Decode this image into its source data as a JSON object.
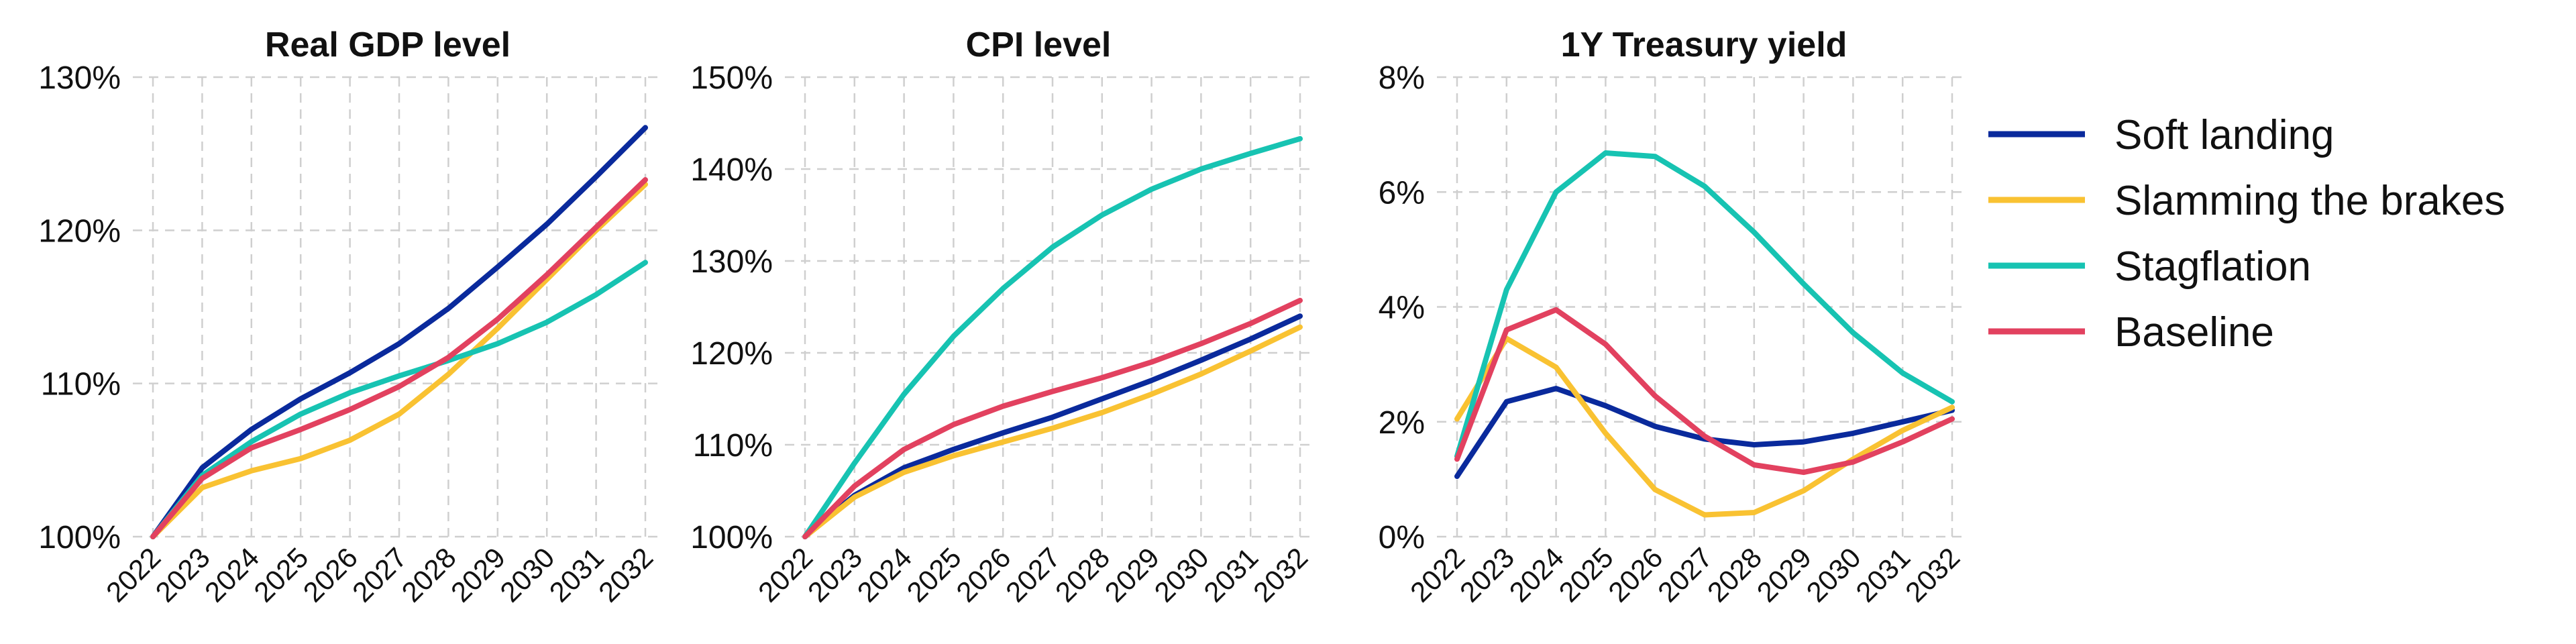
{
  "colors": {
    "soft_landing": "#0a2a9c",
    "slamming": "#f9c232",
    "stagflation": "#17c3b2",
    "baseline": "#e2415f"
  },
  "legend": [
    {
      "label": "Soft landing",
      "color": "#0a2a9c"
    },
    {
      "label": "Slamming the brakes",
      "color": "#f9c232"
    },
    {
      "label": "Stagflation",
      "color": "#17c3b2"
    },
    {
      "label": "Baseline",
      "color": "#e2415f"
    }
  ],
  "chart_data": [
    {
      "type": "line",
      "title": "Real GDP level",
      "x": [
        "2022",
        "2023",
        "2024",
        "2025",
        "2026",
        "2027",
        "2028",
        "2029",
        "2030",
        "2031",
        "2032"
      ],
      "ylim": [
        100,
        130
      ],
      "yticks": [
        100,
        110,
        120,
        130
      ],
      "ytick_labels": [
        "100%",
        "110%",
        "120%",
        "130%"
      ],
      "grid": true,
      "series": [
        {
          "name": "Soft landing",
          "color": "#0a2a9c",
          "values": [
            100,
            104.5,
            107.0,
            109.0,
            110.7,
            112.6,
            114.9,
            117.6,
            120.4,
            123.5,
            126.7
          ]
        },
        {
          "name": "Slamming the brakes",
          "color": "#f9c232",
          "values": [
            100,
            103.2,
            104.3,
            105.1,
            106.3,
            108.0,
            110.6,
            113.6,
            116.8,
            120.0,
            123.0
          ]
        },
        {
          "name": "Stagflation",
          "color": "#17c3b2",
          "values": [
            100,
            104.0,
            106.2,
            108.0,
            109.4,
            110.5,
            111.5,
            112.6,
            114.0,
            115.8,
            117.9
          ]
        },
        {
          "name": "Baseline",
          "color": "#e2415f",
          "values": [
            100,
            103.8,
            105.8,
            107.0,
            108.3,
            109.8,
            111.7,
            114.2,
            117.1,
            120.2,
            123.3
          ]
        }
      ]
    },
    {
      "type": "line",
      "title": "CPI level",
      "x": [
        "2022",
        "2023",
        "2024",
        "2025",
        "2026",
        "2027",
        "2028",
        "2029",
        "2030",
        "2031",
        "2032"
      ],
      "ylim": [
        100,
        150
      ],
      "yticks": [
        100,
        110,
        120,
        130,
        140,
        150
      ],
      "ytick_labels": [
        "100%",
        "110%",
        "120%",
        "130%",
        "140%",
        "150%"
      ],
      "grid": true,
      "series": [
        {
          "name": "Soft landing",
          "color": "#0a2a9c",
          "values": [
            100,
            104.5,
            107.5,
            109.5,
            111.3,
            113.0,
            115.0,
            117.0,
            119.2,
            121.5,
            124.0
          ]
        },
        {
          "name": "Slamming the brakes",
          "color": "#f9c232",
          "values": [
            100,
            104.3,
            107.0,
            108.8,
            110.3,
            111.8,
            113.5,
            115.5,
            117.7,
            120.2,
            122.8
          ]
        },
        {
          "name": "Stagflation",
          "color": "#17c3b2",
          "values": [
            100,
            108.0,
            115.5,
            121.8,
            127.0,
            131.5,
            135.0,
            137.8,
            140.0,
            141.7,
            143.3
          ]
        },
        {
          "name": "Baseline",
          "color": "#e2415f",
          "values": [
            100,
            105.5,
            109.5,
            112.2,
            114.2,
            115.8,
            117.3,
            119.0,
            121.0,
            123.2,
            125.7
          ]
        }
      ]
    },
    {
      "type": "line",
      "title": "1Y Treasury yield",
      "x": [
        "2022",
        "2023",
        "2024",
        "2025",
        "2026",
        "2027",
        "2028",
        "2029",
        "2030",
        "2031",
        "2032"
      ],
      "ylim": [
        0,
        8
      ],
      "yticks": [
        0,
        2,
        4,
        6,
        8
      ],
      "ytick_labels": [
        "0%",
        "2%",
        "4%",
        "6%",
        "8%"
      ],
      "grid": true,
      "series": [
        {
          "name": "Soft landing",
          "color": "#0a2a9c",
          "values": [
            1.05,
            2.35,
            2.58,
            2.28,
            1.92,
            1.7,
            1.6,
            1.65,
            1.8,
            2.0,
            2.2
          ]
        },
        {
          "name": "Slamming the brakes",
          "color": "#f9c232",
          "values": [
            2.05,
            3.45,
            2.95,
            1.8,
            0.82,
            0.38,
            0.42,
            0.8,
            1.35,
            1.85,
            2.25
          ]
        },
        {
          "name": "Stagflation",
          "color": "#17c3b2",
          "values": [
            1.4,
            4.3,
            6.0,
            6.68,
            6.62,
            6.1,
            5.3,
            4.4,
            3.55,
            2.85,
            2.35
          ]
        },
        {
          "name": "Baseline",
          "color": "#e2415f",
          "values": [
            1.35,
            3.6,
            3.95,
            3.35,
            2.45,
            1.75,
            1.25,
            1.12,
            1.3,
            1.65,
            2.05
          ]
        }
      ]
    }
  ]
}
